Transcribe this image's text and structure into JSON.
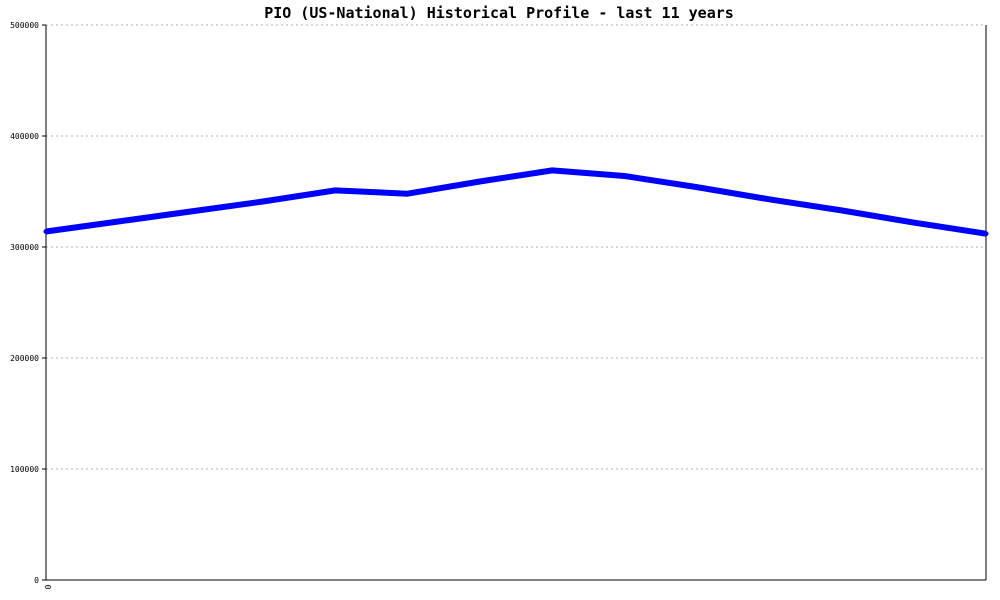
{
  "chart_data": {
    "type": "line",
    "title": "PIO (US-National) Historical Profile - last 11 years",
    "xlabel": "",
    "ylabel": "",
    "x_tick_labels": [
      "0"
    ],
    "y_tick_labels": [
      "0",
      "100000",
      "200000",
      "300000",
      "400000",
      "500000"
    ],
    "ylim": [
      0,
      500000
    ],
    "grid": true,
    "series": [
      {
        "color": "#0000ff",
        "values": [
          314000,
          323000,
          332000,
          341000,
          351000,
          348000,
          359000,
          369000,
          364000,
          354000,
          343000,
          333000,
          322000,
          312000
        ]
      }
    ]
  }
}
